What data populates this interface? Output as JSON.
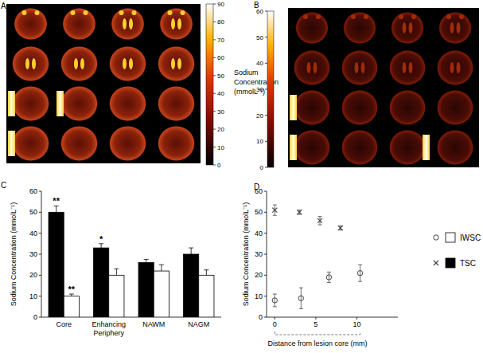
{
  "chart_data": [
    {
      "type": "image",
      "title": "A",
      "colorbar": {
        "label": "Sodium Concentration (mmolL⁻¹)",
        "range": [
          0,
          90
        ],
        "ticks": [
          0,
          10,
          20,
          30,
          40,
          50,
          60,
          70,
          80,
          90
        ]
      }
    },
    {
      "type": "image",
      "title": "B",
      "colorbar": {
        "range": [
          0,
          60
        ],
        "ticks": [
          0,
          10,
          20,
          30,
          40,
          50,
          60
        ]
      }
    },
    {
      "type": "bar",
      "title": "C",
      "ylabel": "Sodium Concentration (mmolL⁻¹)",
      "categories": [
        "Core",
        "Enhancing Periphery",
        "NAWM",
        "NAGM"
      ],
      "series": [
        {
          "name": "TSC",
          "color": "#000000",
          "values": [
            50,
            33,
            26,
            30
          ],
          "errors": [
            3,
            2,
            1.5,
            3
          ]
        },
        {
          "name": "IWSC",
          "color": "#ffffff",
          "values": [
            10,
            20,
            22,
            20
          ],
          "errors": [
            1,
            3,
            3,
            2.5
          ]
        }
      ],
      "annotations": [
        {
          "text": "**",
          "series": 0,
          "index": 0
        },
        {
          "text": "**",
          "series": 1,
          "index": 0
        },
        {
          "text": "*",
          "series": 0,
          "index": 1
        }
      ],
      "ylim": [
        0,
        60
      ],
      "yticks": [
        0,
        10,
        20,
        30,
        40,
        50,
        60
      ]
    },
    {
      "type": "scatter",
      "title": "D",
      "xlabel": "Distance from lesion core (mm)",
      "ylabel": "Sodium Concentration (mmolL⁻¹)",
      "series": [
        {
          "name": "IWSC",
          "marker": "circle",
          "color": "#444444",
          "x": [
            0,
            3.2,
            6.6,
            10.4
          ],
          "values": [
            8,
            9,
            19,
            21
          ],
          "errors": [
            3,
            5,
            2.5,
            4
          ]
        },
        {
          "name": "TSC",
          "marker": "cross",
          "color": "#444444",
          "x": [
            0,
            3,
            5.5,
            8
          ],
          "values": [
            51,
            50,
            46,
            42.5
          ],
          "errors": [
            2.5,
            1,
            2,
            1
          ]
        }
      ],
      "xlim": [
        -1,
        15
      ],
      "xticks": [
        0,
        5,
        10
      ],
      "ylim": [
        0,
        60
      ],
      "yticks": [
        0,
        10,
        20,
        30,
        40,
        50,
        60
      ],
      "legend": "right"
    }
  ]
}
